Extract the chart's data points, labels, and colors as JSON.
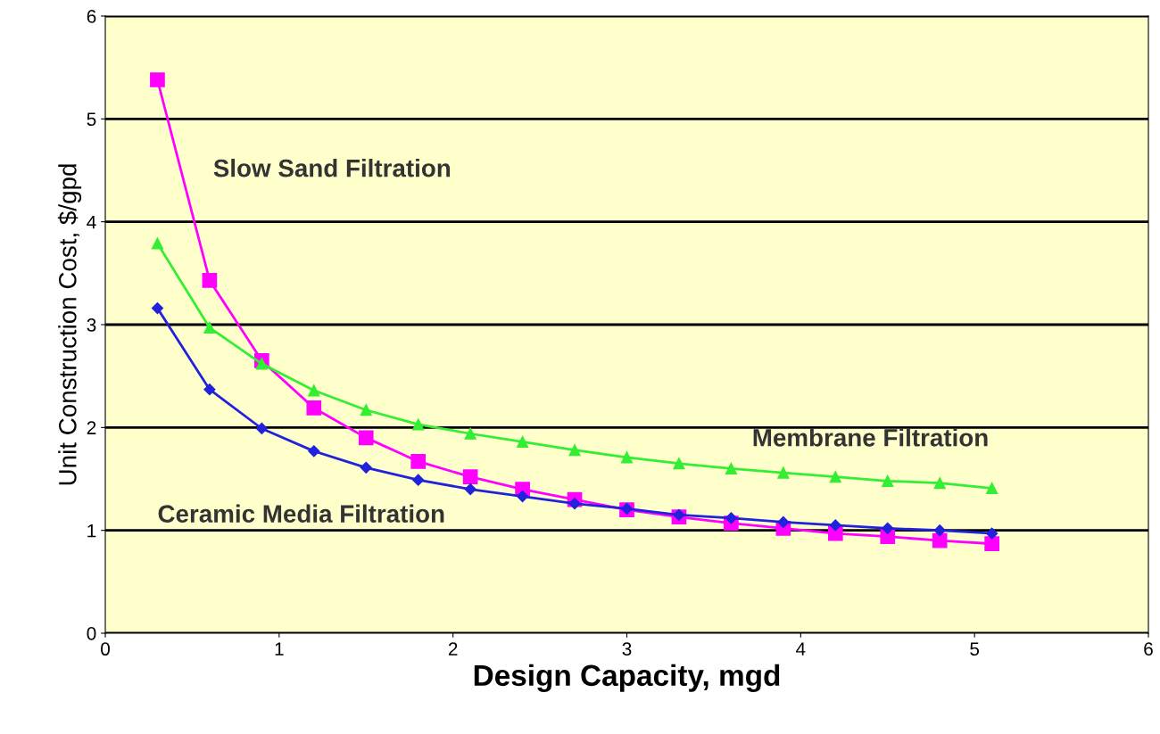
{
  "chart_data": {
    "type": "line",
    "xlabel": "Design Capacity, mgd",
    "ylabel": "Unit Construction Cost, $/gpd",
    "x": [
      0.3,
      0.6,
      0.9,
      1.2,
      1.5,
      1.8,
      2.1,
      2.4,
      2.7,
      3.0,
      3.3,
      3.6,
      3.9,
      4.2,
      4.5,
      4.8,
      5.1
    ],
    "series": [
      {
        "name": "Slow Sand Filtration",
        "color": "#ff00ff",
        "marker": "square",
        "values": [
          5.38,
          3.43,
          2.65,
          2.19,
          1.9,
          1.67,
          1.52,
          1.4,
          1.3,
          1.2,
          1.13,
          1.07,
          1.02,
          0.97,
          0.94,
          0.9,
          0.87
        ]
      },
      {
        "name": "Membrane Filtration",
        "color": "#33ee33",
        "marker": "triangle",
        "values": [
          3.79,
          2.97,
          2.62,
          2.36,
          2.17,
          2.03,
          1.94,
          1.86,
          1.78,
          1.71,
          1.65,
          1.6,
          1.56,
          1.52,
          1.48,
          1.46,
          1.41
        ]
      },
      {
        "name": "Ceramic Media Filtration",
        "color": "#2222dd",
        "marker": "diamond",
        "values": [
          3.16,
          2.37,
          1.99,
          1.77,
          1.61,
          1.49,
          1.4,
          1.33,
          1.26,
          1.21,
          1.15,
          1.12,
          1.08,
          1.05,
          1.02,
          1.0,
          0.97
        ]
      }
    ],
    "xlim": [
      0,
      6
    ],
    "ylim": [
      0,
      6
    ],
    "xticks": [
      0,
      1,
      2,
      3,
      4,
      5,
      6
    ],
    "yticks": [
      0,
      1,
      2,
      3,
      4,
      5,
      6
    ],
    "grid": "y",
    "legend": false,
    "line_style": "solid"
  }
}
